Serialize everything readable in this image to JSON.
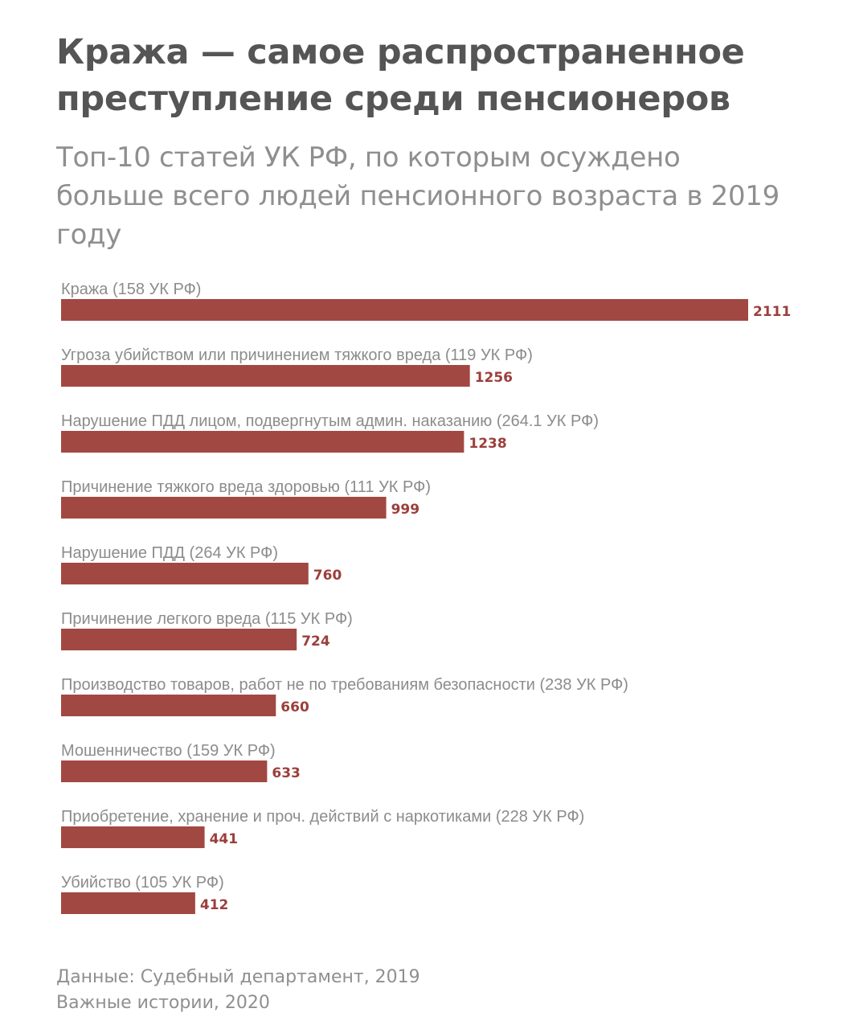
{
  "header": {
    "title": "Кража — самое распространенное преступление среди пенсионеров",
    "subtitle": "Топ-10 статей УК РФ, по которым осуждено больше всего людей пенсионного возраста в 2019 году"
  },
  "footer": {
    "source_line1": "Данные: Судебный департамент, 2019",
    "source_line2": "Важные истории, 2020"
  },
  "colors": {
    "bar": "#a24843",
    "value_label": "#9b3f3b",
    "title": "#555555",
    "muted_text": "#8f8f8f"
  },
  "chart_data": {
    "type": "bar",
    "orientation": "horizontal",
    "title": "Кража — самое распространенное преступление среди пенсионеров",
    "subtitle": "Топ-10 статей УК РФ, по которым осуждено больше всего людей пенсионного возраста в 2019 году",
    "xlabel": "",
    "ylabel": "",
    "grid": false,
    "legend": "none",
    "categories": [
      "Кража (158 УК РФ)",
      "Угроза убийством или причинением тяжкого вреда (119 УК РФ)",
      "Нарушение ПДД лицом, подвергнутым админ. наказанию (264.1 УК РФ)",
      "Причинение тяжкого вреда здоровью (111 УК РФ)",
      "Нарушение ПДД (264 УК РФ)",
      "Причинение легкого вреда (115 УК РФ)",
      "Производство товаров, работ не по требованиям безопасности (238 УК РФ)",
      "Мошенничество (159 УК РФ)",
      "Приобретение, хранение и проч. действий с наркотиками (228 УК РФ)",
      "Убийство (105 УК РФ)"
    ],
    "values": [
      2111,
      1256,
      1238,
      999,
      760,
      724,
      660,
      633,
      441,
      412
    ],
    "xlim": [
      0,
      2111
    ]
  }
}
